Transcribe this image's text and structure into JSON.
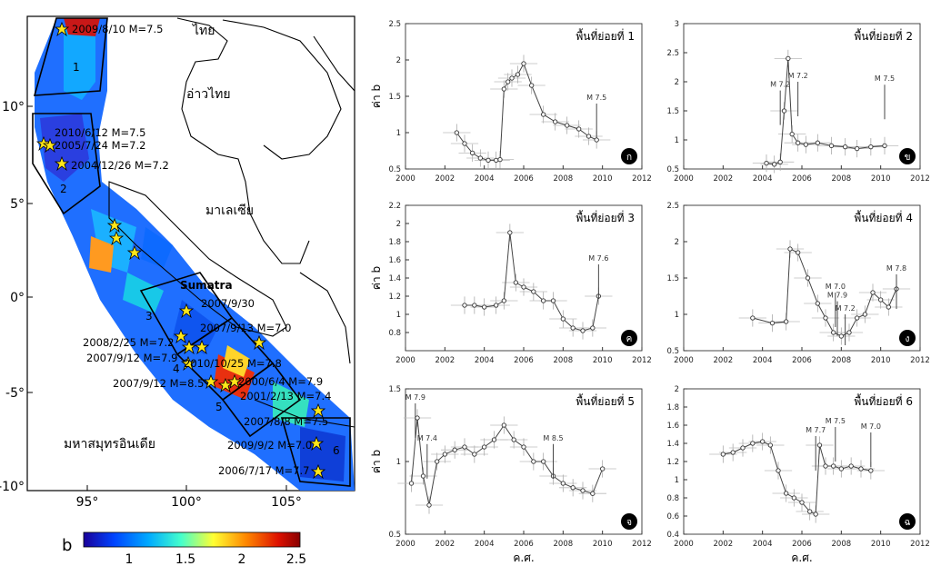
{
  "map": {
    "x_ticks": [
      "95°",
      "100°",
      "105°"
    ],
    "y_ticks": [
      "10°",
      "5°",
      "0°",
      "-5°",
      "-10°"
    ],
    "labels": {
      "thailand": "ไทย",
      "gulf": "อ่าวไทย",
      "malaysia": "มาเลเซีย",
      "sumatra": "Sumatra",
      "ocean": "มหาสมุทรอินเดีย"
    },
    "zone_numbers": [
      "1",
      "2",
      "3",
      "4",
      "5",
      "6"
    ],
    "quakes": [
      {
        "text": "2009/8/10 M=7.5"
      },
      {
        "text": "2010/6/12 M=7.5"
      },
      {
        "text": "2005/7/24 M=7.2"
      },
      {
        "text": "2004/12/26 M=7.2"
      },
      {
        "text": "2007/9/30"
      },
      {
        "text": "2007/9/13 M=7.0"
      },
      {
        "text": "2008/2/25 M=7.2"
      },
      {
        "text": "2007/9/12 M=7.9"
      },
      {
        "text": "2010/10/25 M=7.8"
      },
      {
        "text": "2007/9/12 M=8.5"
      },
      {
        "text": "2000/6/4 M=7.9"
      },
      {
        "text": "2001/2/13 M=7.4"
      },
      {
        "text": "2007/8/8 M=7.5"
      },
      {
        "text": "2009/9/2 M=7.0"
      },
      {
        "text": "2006/7/17 M=7.7"
      }
    ],
    "colorbar": {
      "label": "b",
      "ticks": [
        "1",
        "1.5",
        "2",
        "2.5"
      ],
      "colors": [
        "#1a0099",
        "#0044ff",
        "#00aaff",
        "#44ffcc",
        "#ffff33",
        "#ff8800",
        "#dd1100",
        "#880000"
      ]
    }
  },
  "chart_data": [
    {
      "type": "line",
      "title": "พื้นที่ย่อยที่ 1",
      "badge": "ก",
      "xlabel": "",
      "ylabel": "ค่า b",
      "xlim": [
        2000,
        2012
      ],
      "ylim": [
        0.5,
        2.5
      ],
      "x_ticks": [
        2000,
        2002,
        2004,
        2006,
        2008,
        2010,
        2012
      ],
      "y_ticks": [
        0.5,
        1,
        1.5,
        2,
        2.5
      ],
      "x": [
        2002.6,
        2003.0,
        2003.4,
        2003.8,
        2004.2,
        2004.6,
        2004.8,
        2005.0,
        2005.2,
        2005.4,
        2005.7,
        2006.0,
        2006.4,
        2007.0,
        2007.6,
        2008.2,
        2008.8,
        2009.3,
        2009.7
      ],
      "y": [
        1.0,
        0.85,
        0.72,
        0.65,
        0.62,
        0.62,
        0.63,
        1.6,
        1.7,
        1.75,
        1.8,
        1.95,
        1.65,
        1.25,
        1.15,
        1.1,
        1.05,
        0.95,
        0.9
      ],
      "annotations": [
        {
          "text": "M 7.5",
          "x": 2009.7,
          "y": 1.4
        }
      ]
    },
    {
      "type": "line",
      "title": "พื้นที่ย่อยที่ 2",
      "badge": "ข",
      "xlabel": "",
      "ylabel": "",
      "xlim": [
        2000,
        2012
      ],
      "ylim": [
        0.5,
        3
      ],
      "x_ticks": [
        2000,
        2002,
        2004,
        2006,
        2008,
        2010,
        2012
      ],
      "y_ticks": [
        0.5,
        1,
        1.5,
        2,
        2.5,
        3
      ],
      "x": [
        2004.2,
        2004.6,
        2004.9,
        2005.1,
        2005.3,
        2005.5,
        2005.8,
        2006.2,
        2006.8,
        2007.5,
        2008.2,
        2008.8,
        2009.5,
        2010.2
      ],
      "y": [
        0.6,
        0.58,
        0.62,
        1.5,
        2.4,
        1.1,
        0.95,
        0.92,
        0.95,
        0.9,
        0.88,
        0.85,
        0.88,
        0.9
      ],
      "annotations": [
        {
          "text": "M 7.2",
          "x": 2004.9,
          "y": 1.85
        },
        {
          "text": "M 7.2",
          "x": 2005.8,
          "y": 2.0
        },
        {
          "text": "M 7.5",
          "x": 2010.2,
          "y": 1.95
        }
      ]
    },
    {
      "type": "line",
      "title": "พื้นที่ย่อยที่ 3",
      "badge": "ค",
      "xlabel": "",
      "ylabel": "ค่า b",
      "xlim": [
        2000,
        2012
      ],
      "ylim": [
        0.6,
        2.2
      ],
      "x_ticks": [
        2000,
        2002,
        2004,
        2006,
        2008,
        2010,
        2012
      ],
      "y_ticks": [
        0.8,
        1,
        1.2,
        1.4,
        1.6,
        1.8,
        2,
        2.2
      ],
      "x": [
        2003.0,
        2003.5,
        2004.0,
        2004.6,
        2005.0,
        2005.3,
        2005.6,
        2006.0,
        2006.5,
        2007.0,
        2007.5,
        2008.0,
        2008.5,
        2009.0,
        2009.5,
        2009.8
      ],
      "y": [
        1.1,
        1.1,
        1.08,
        1.1,
        1.15,
        1.9,
        1.35,
        1.3,
        1.25,
        1.15,
        1.15,
        0.95,
        0.85,
        0.82,
        0.85,
        1.2
      ],
      "annotations": [
        {
          "text": "M 7.6",
          "x": 2009.8,
          "y": 1.55
        }
      ]
    },
    {
      "type": "line",
      "title": "พื้นที่ย่อยที่ 4",
      "badge": "ง",
      "xlabel": "",
      "ylabel": "",
      "xlim": [
        2000,
        2012
      ],
      "ylim": [
        0.5,
        2.5
      ],
      "x_ticks": [
        2000,
        2002,
        2004,
        2006,
        2008,
        2010,
        2012
      ],
      "y_ticks": [
        0.5,
        1,
        1.5,
        2,
        2.5
      ],
      "x": [
        2003.5,
        2004.5,
        2005.2,
        2005.4,
        2005.8,
        2006.3,
        2006.8,
        2007.2,
        2007.6,
        2008.0,
        2008.4,
        2008.8,
        2009.2,
        2009.6,
        2010.0,
        2010.4,
        2010.8
      ],
      "y": [
        0.95,
        0.88,
        0.9,
        1.9,
        1.85,
        1.5,
        1.15,
        0.95,
        0.75,
        0.7,
        0.75,
        0.95,
        1.0,
        1.3,
        1.2,
        1.1,
        1.35
      ],
      "annotations": [
        {
          "text": "M 7.0",
          "x": 2007.7,
          "y": 1.3
        },
        {
          "text": "M 7.9",
          "x": 2007.8,
          "y": 1.18
        },
        {
          "text": "M 7.2",
          "x": 2008.2,
          "y": 1.0
        },
        {
          "text": "M 7.8",
          "x": 2010.8,
          "y": 1.55
        }
      ]
    },
    {
      "type": "line",
      "title": "พื้นที่ย่อยที่ 5",
      "badge": "จ",
      "xlabel": "ค.ศ.",
      "ylabel": "ค่า b",
      "xlim": [
        2000,
        2012
      ],
      "ylim": [
        0.5,
        1.5
      ],
      "x_ticks": [
        2000,
        2002,
        2004,
        2006,
        2008,
        2010,
        2012
      ],
      "y_ticks": [
        0.5,
        1,
        1.5
      ],
      "x": [
        2000.3,
        2000.6,
        2000.9,
        2001.2,
        2001.6,
        2002.0,
        2002.5,
        2003.0,
        2003.5,
        2004.0,
        2004.5,
        2005.0,
        2005.5,
        2006.0,
        2006.5,
        2007.0,
        2007.5,
        2008.0,
        2008.5,
        2009.0,
        2009.5,
        2010.0
      ],
      "y": [
        0.85,
        1.3,
        0.9,
        0.7,
        1.0,
        1.05,
        1.08,
        1.1,
        1.05,
        1.1,
        1.15,
        1.25,
        1.15,
        1.1,
        1.0,
        1.0,
        0.9,
        0.85,
        0.82,
        0.8,
        0.78,
        0.95
      ],
      "annotations": [
        {
          "text": "M 7.9",
          "x": 2000.5,
          "y": 1.4
        },
        {
          "text": "M 7.4",
          "x": 2001.1,
          "y": 1.12
        },
        {
          "text": "M 8.5",
          "x": 2007.5,
          "y": 1.12
        }
      ]
    },
    {
      "type": "line",
      "title": "พื้นที่ย่อยที่ 6",
      "badge": "ฉ",
      "xlabel": "ค.ศ.",
      "ylabel": "",
      "xlim": [
        2000,
        2012
      ],
      "ylim": [
        0.4,
        2
      ],
      "x_ticks": [
        2000,
        2002,
        2004,
        2006,
        2008,
        2010,
        2012
      ],
      "y_ticks": [
        0.4,
        0.6,
        0.8,
        1,
        1.2,
        1.4,
        1.6,
        1.8,
        2
      ],
      "x": [
        2002.0,
        2002.5,
        2003.0,
        2003.5,
        2004.0,
        2004.4,
        2004.8,
        2005.2,
        2005.6,
        2006.0,
        2006.4,
        2006.7,
        2006.9,
        2007.2,
        2007.6,
        2008.0,
        2008.5,
        2009.0,
        2009.5
      ],
      "y": [
        1.28,
        1.3,
        1.35,
        1.4,
        1.42,
        1.38,
        1.1,
        0.85,
        0.8,
        0.75,
        0.65,
        0.62,
        1.38,
        1.15,
        1.15,
        1.12,
        1.15,
        1.12,
        1.1
      ],
      "annotations": [
        {
          "text": "M 7.7",
          "x": 2006.7,
          "y": 1.48
        },
        {
          "text": "M 7.5",
          "x": 2007.7,
          "y": 1.58
        },
        {
          "text": "M 7.0",
          "x": 2009.5,
          "y": 1.52
        }
      ]
    }
  ]
}
